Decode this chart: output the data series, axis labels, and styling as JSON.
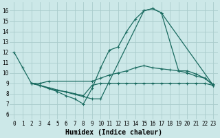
{
  "background_color": "#cce8e8",
  "grid_color": "#aacccc",
  "line_color": "#1a6b60",
  "marker": "+",
  "marker_size": 3,
  "linewidth": 0.9,
  "xlabel": "Humidex (Indice chaleur)",
  "xlabel_fontsize": 7,
  "tick_fontsize": 5.5,
  "xlim": [
    -0.5,
    23.5
  ],
  "ylim": [
    5.5,
    16.8
  ],
  "xticks": [
    0,
    1,
    2,
    3,
    4,
    5,
    6,
    7,
    8,
    9,
    10,
    11,
    12,
    13,
    14,
    15,
    16,
    17,
    18,
    19,
    20,
    21,
    22,
    23
  ],
  "yticks": [
    6,
    7,
    8,
    9,
    10,
    11,
    12,
    13,
    14,
    15,
    16
  ],
  "lines": [
    {
      "x": [
        0,
        1,
        2,
        3,
        4,
        5,
        6,
        7,
        8,
        9,
        10,
        11,
        12,
        13,
        14,
        15,
        16,
        17,
        23
      ],
      "y": [
        12,
        10.5,
        9.0,
        8.8,
        8.5,
        8.2,
        7.8,
        7.5,
        7.0,
        8.5,
        10.5,
        12.2,
        12.5,
        14.0,
        15.2,
        16.0,
        16.2,
        15.8,
        8.8
      ]
    },
    {
      "x": [
        2,
        3,
        4,
        9,
        10,
        11,
        12,
        13,
        14,
        15,
        16,
        17,
        18,
        19,
        20,
        21,
        22,
        23
      ],
      "y": [
        9.0,
        9.0,
        9.2,
        9.2,
        9.5,
        9.8,
        10.0,
        10.2,
        10.5,
        10.7,
        10.5,
        10.4,
        10.3,
        10.2,
        10.2,
        9.9,
        9.5,
        8.9
      ]
    },
    {
      "x": [
        2,
        3,
        9,
        10,
        15,
        16,
        17,
        19,
        20,
        21,
        22,
        23
      ],
      "y": [
        9.0,
        8.8,
        7.5,
        7.5,
        16.0,
        16.2,
        15.8,
        10.2,
        10.0,
        9.7,
        9.5,
        8.8
      ]
    },
    {
      "x": [
        2,
        3,
        4,
        5,
        6,
        7,
        8,
        9,
        10,
        11,
        12,
        13,
        14,
        15,
        16,
        17,
        18,
        19,
        20,
        21,
        22,
        23
      ],
      "y": [
        9.0,
        8.8,
        8.5,
        8.3,
        8.2,
        8.0,
        7.8,
        8.8,
        9.0,
        9.0,
        9.0,
        9.0,
        9.0,
        9.0,
        9.0,
        9.0,
        9.0,
        9.0,
        9.0,
        9.0,
        9.0,
        8.8
      ]
    }
  ]
}
